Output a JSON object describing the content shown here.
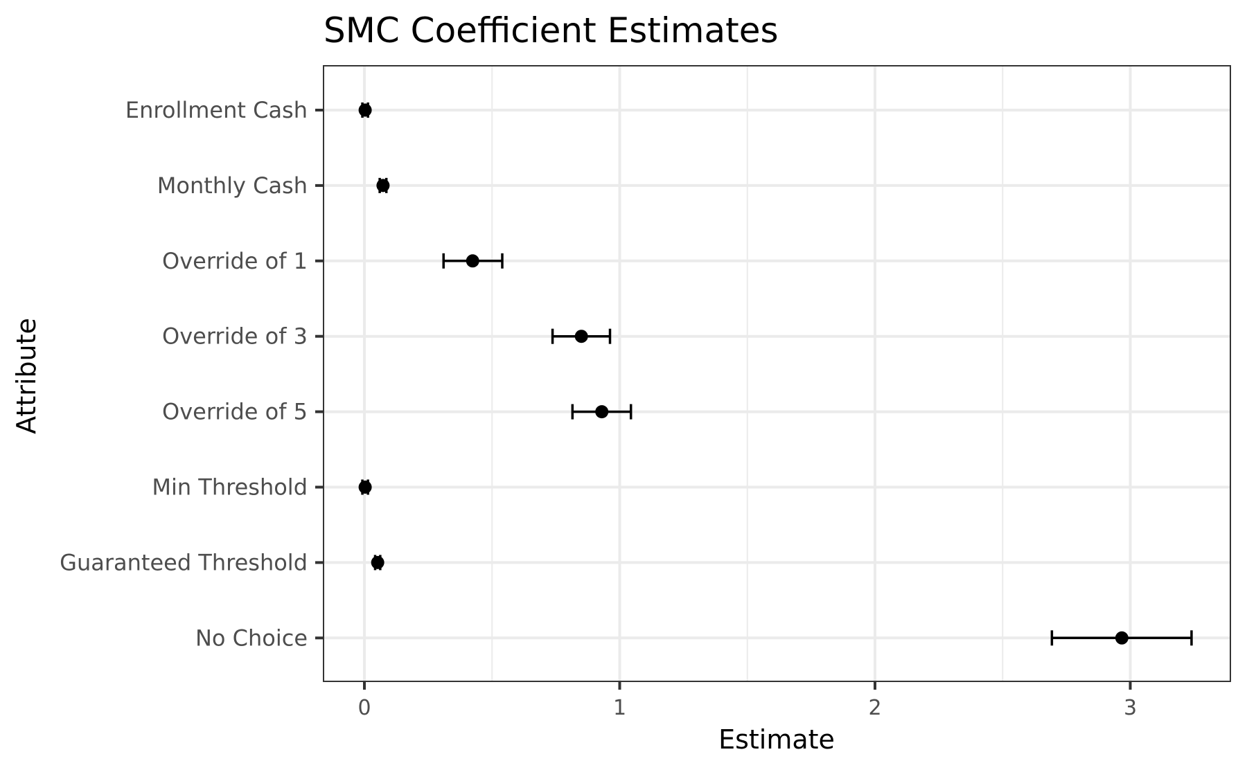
{
  "chart_data": {
    "type": "scatter",
    "subtype": "dot-and-whisker",
    "title": "SMC Coefficient Estimates",
    "xlabel": "Estimate",
    "ylabel": "Attribute",
    "xlim": [
      -0.16,
      3.44
    ],
    "xticks": [
      0,
      1,
      2,
      3
    ],
    "xtick_labels": [
      "0",
      "1",
      "2",
      "3"
    ],
    "x_minor_gridlines": [
      0.5,
      1.5,
      2.5
    ],
    "grid": true,
    "legend": "none",
    "categories": [
      "Enrollment Cash",
      "Monthly Cash",
      "Override of 1",
      "Override of 3",
      "Override of 5",
      "Min Threshold",
      "Guaranteed Threshold",
      "No Choice"
    ],
    "series": [
      {
        "name": "Estimate",
        "values": [
          0.003,
          0.073,
          0.424,
          0.85,
          0.93,
          0.003,
          0.052,
          2.967
        ],
        "ci_lower": [
          -0.008,
          0.06,
          0.31,
          0.737,
          0.815,
          -0.008,
          0.042,
          2.693
        ],
        "ci_upper": [
          0.014,
          0.086,
          0.54,
          0.962,
          1.044,
          0.014,
          0.062,
          3.24
        ]
      }
    ],
    "colors": {
      "point": "#000000",
      "grid": "#ebebeb",
      "panel_border": "#333333",
      "tick_text": "#4d4d4d"
    }
  }
}
